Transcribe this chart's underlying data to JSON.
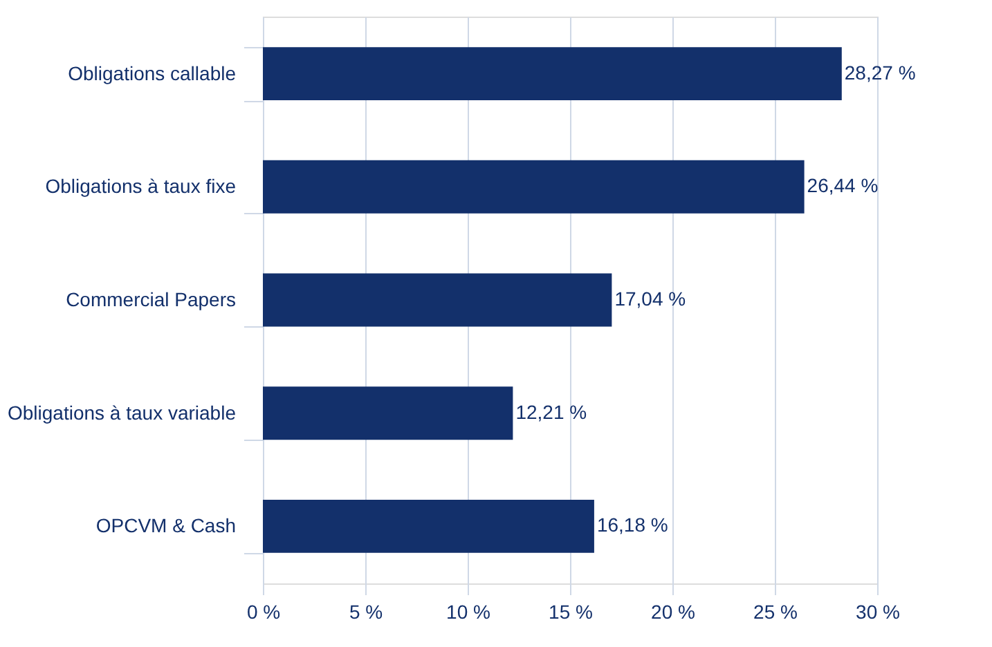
{
  "chart_data": {
    "type": "bar",
    "orientation": "horizontal",
    "categories": [
      "Obligations callable",
      "Obligations à taux fixe",
      "Commercial Papers",
      "Obligations à taux variable",
      "OPCVM & Cash"
    ],
    "values": [
      28.27,
      26.44,
      17.04,
      12.21,
      16.18
    ],
    "value_labels": [
      "28,27 %",
      "26,44 %",
      "17,04 %",
      "12,21 %",
      "16,18 %"
    ],
    "color": "#13306b",
    "xlim": [
      0,
      30
    ],
    "xticks": [
      {
        "value": 0,
        "label": "0 %"
      },
      {
        "value": 5,
        "label": "5 %"
      },
      {
        "value": 10,
        "label": "10 %"
      },
      {
        "value": 15,
        "label": "15 %"
      },
      {
        "value": 20,
        "label": "20 %"
      },
      {
        "value": 25,
        "label": "25 %"
      },
      {
        "value": 30,
        "label": "30 %"
      }
    ],
    "grid": "x"
  }
}
